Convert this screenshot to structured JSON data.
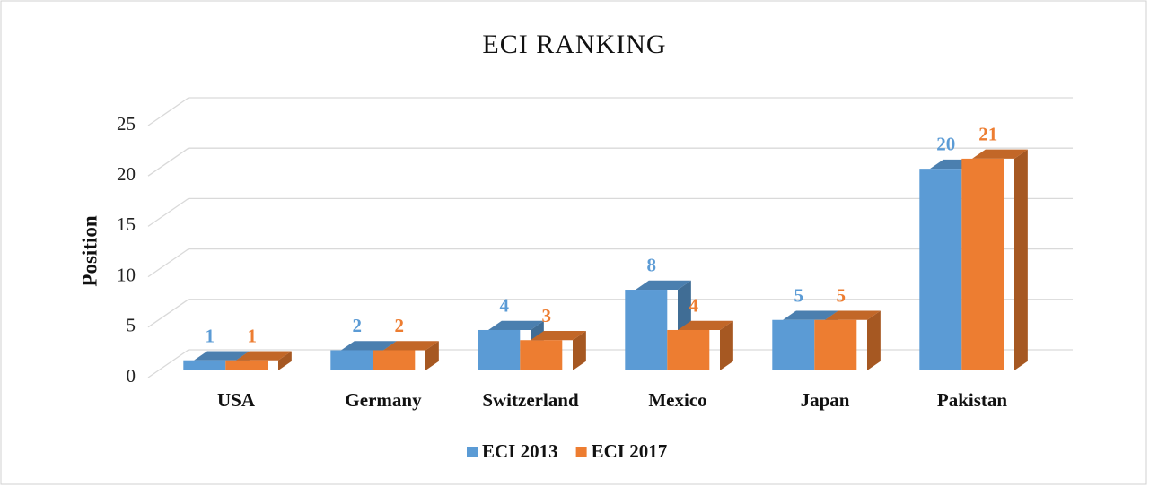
{
  "chart_data": {
    "type": "bar3d",
    "title": "ECI RANKING",
    "y_label": "Position",
    "categories": [
      "USA",
      "Germany",
      "Switzerland",
      "Mexico",
      "Japan",
      "Pakistan"
    ],
    "series": [
      {
        "name": "ECI 2013",
        "color": "#5b9bd5",
        "values": [
          1,
          2,
          4,
          8,
          5,
          20
        ]
      },
      {
        "name": "ECI 2017",
        "color": "#ed7d31",
        "values": [
          1,
          2,
          3,
          4,
          5,
          21
        ]
      }
    ],
    "ylim": [
      0,
      25
    ],
    "yticks": [
      0,
      5,
      10,
      15,
      20,
      25
    ],
    "grid": true,
    "legend": "bottom"
  }
}
